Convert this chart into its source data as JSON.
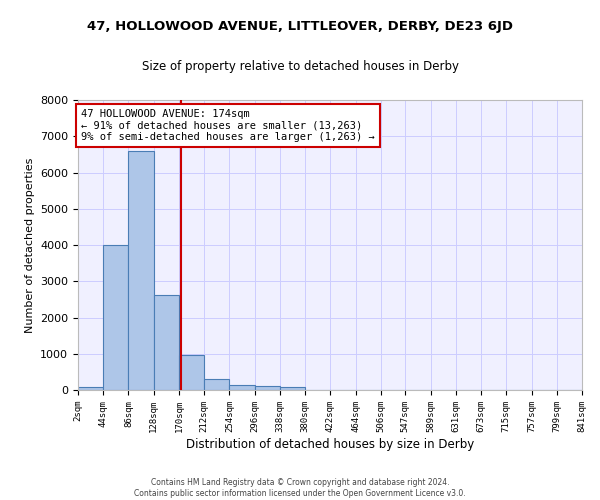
{
  "title": "47, HOLLOWOOD AVENUE, LITTLEOVER, DERBY, DE23 6JD",
  "subtitle": "Size of property relative to detached houses in Derby",
  "xlabel": "Distribution of detached houses by size in Derby",
  "ylabel": "Number of detached properties",
  "footnote": "Contains HM Land Registry data © Crown copyright and database right 2024.\nContains public sector information licensed under the Open Government Licence v3.0.",
  "bin_edges": [
    2,
    44,
    86,
    128,
    170,
    212,
    254,
    296,
    338,
    380,
    422,
    464,
    506,
    547,
    589,
    631,
    673,
    715,
    757,
    799,
    841
  ],
  "bar_heights": [
    70,
    4000,
    6580,
    2630,
    960,
    310,
    125,
    110,
    90,
    0,
    0,
    0,
    0,
    0,
    0,
    0,
    0,
    0,
    0,
    0
  ],
  "bar_color": "#aec6e8",
  "bar_edge_color": "#4a7db5",
  "property_size": 174,
  "property_line_color": "#cc0000",
  "annotation_text": "47 HOLLOWOOD AVENUE: 174sqm\n← 91% of detached houses are smaller (13,263)\n9% of semi-detached houses are larger (1,263) →",
  "annotation_box_color": "#cc0000",
  "annotation_text_color": "#000000",
  "ylim": [
    0,
    8000
  ],
  "grid_color": "#ccccff",
  "background_color": "#f0f0ff",
  "tick_labels": [
    "2sqm",
    "44sqm",
    "86sqm",
    "128sqm",
    "170sqm",
    "212sqm",
    "254sqm",
    "296sqm",
    "338sqm",
    "380sqm",
    "422sqm",
    "464sqm",
    "506sqm",
    "547sqm",
    "589sqm",
    "631sqm",
    "673sqm",
    "715sqm",
    "757sqm",
    "799sqm",
    "841sqm"
  ]
}
